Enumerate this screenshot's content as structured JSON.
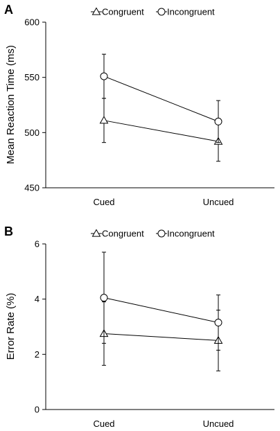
{
  "chart_data": [
    {
      "panel": "A",
      "type": "line",
      "categories": [
        "Cued",
        "Uncued"
      ],
      "ylabel": "Mean Reaction Time (ms)",
      "xlabel": "",
      "ylim": [
        450,
        600
      ],
      "yticks": [
        450,
        500,
        550,
        600
      ],
      "series": [
        {
          "name": "Congruent",
          "marker": "triangle",
          "values": [
            511,
            492
          ],
          "error": [
            20,
            18
          ]
        },
        {
          "name": "Incongruent",
          "marker": "circle",
          "values": [
            551,
            510
          ],
          "error": [
            20,
            19
          ]
        }
      ],
      "legend": "top-center",
      "grid": false
    },
    {
      "panel": "B",
      "type": "line",
      "categories": [
        "Cued",
        "Uncued"
      ],
      "ylabel": "Error Rate (%)",
      "xlabel": "",
      "ylim": [
        0,
        6
      ],
      "yticks": [
        0,
        2,
        4,
        6
      ],
      "series": [
        {
          "name": "Congruent",
          "marker": "triangle",
          "values": [
            2.75,
            2.5
          ],
          "error": [
            1.15,
            1.1
          ]
        },
        {
          "name": "Incongruent",
          "marker": "circle",
          "values": [
            4.05,
            3.15
          ],
          "error": [
            1.65,
            1.0
          ]
        }
      ],
      "legend": "top-center",
      "grid": false
    }
  ]
}
